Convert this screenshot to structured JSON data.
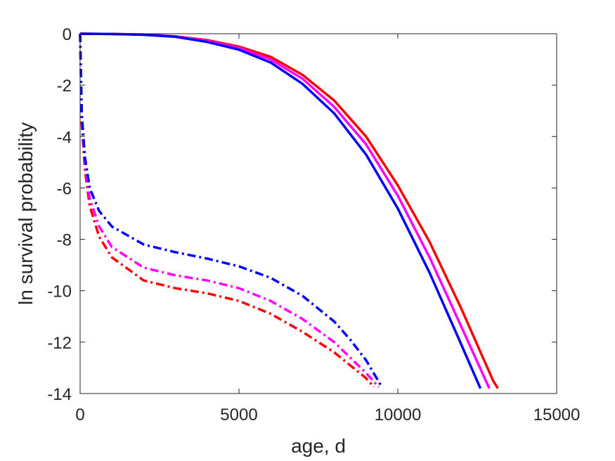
{
  "chart_data": {
    "type": "line",
    "title": "",
    "xlabel": "age, d",
    "ylabel": "ln survival probability",
    "xlim": [
      0,
      15000
    ],
    "ylim": [
      -14,
      0
    ],
    "xticks": [
      0,
      5000,
      10000,
      15000
    ],
    "yticks": [
      0,
      -2,
      -4,
      -6,
      -8,
      -10,
      -12,
      -14
    ],
    "xtick_labels": [
      "0",
      "5000",
      "10000",
      "15000"
    ],
    "ytick_labels": [
      "0",
      "-2",
      "-4",
      "-6",
      "-8",
      "-10",
      "-12",
      "-14"
    ],
    "grid": false,
    "legend": "none",
    "series": [
      {
        "color": "#ff0000",
        "style": "solid",
        "x": [
          0,
          1000,
          2000,
          3000,
          4000,
          5000,
          6000,
          7000,
          8000,
          9000,
          10000,
          11000,
          12000,
          13000,
          13150
        ],
        "y": [
          0,
          -0.01,
          -0.03,
          -0.1,
          -0.25,
          -0.5,
          -0.9,
          -1.6,
          -2.6,
          -4.0,
          -5.9,
          -8.1,
          -10.7,
          -13.5,
          -13.8
        ]
      },
      {
        "color": "#ff00ff",
        "style": "solid",
        "x": [
          0,
          1000,
          2000,
          3000,
          4000,
          5000,
          6000,
          7000,
          8000,
          9000,
          10000,
          11000,
          12000,
          12880
        ],
        "y": [
          0,
          -0.01,
          -0.03,
          -0.1,
          -0.28,
          -0.55,
          -1.0,
          -1.75,
          -2.85,
          -4.3,
          -6.3,
          -8.7,
          -11.4,
          -13.8
        ]
      },
      {
        "color": "#0000ff",
        "style": "solid",
        "x": [
          0,
          1000,
          2000,
          3000,
          4000,
          5000,
          6000,
          7000,
          8000,
          9000,
          10000,
          11000,
          12000,
          12600
        ],
        "y": [
          0,
          -0.01,
          -0.04,
          -0.12,
          -0.32,
          -0.62,
          -1.12,
          -1.95,
          -3.1,
          -4.7,
          -6.8,
          -9.3,
          -12.1,
          -13.8
        ]
      },
      {
        "color": "#ff0000",
        "style": "dashdot",
        "x": [
          0,
          50,
          150,
          300,
          600,
          1000,
          2000,
          3000,
          4000,
          5000,
          6000,
          7000,
          8000,
          8500,
          9000,
          9250
        ],
        "y": [
          0,
          -3.5,
          -5.3,
          -6.7,
          -7.9,
          -8.7,
          -9.6,
          -9.9,
          -10.1,
          -10.4,
          -10.9,
          -11.6,
          -12.4,
          -12.9,
          -13.4,
          -13.75
        ]
      },
      {
        "color": "#ff00ff",
        "style": "dashdot",
        "x": [
          0,
          50,
          150,
          300,
          600,
          1000,
          2000,
          3000,
          4000,
          5000,
          6000,
          7000,
          8000,
          8500,
          9000,
          9400
        ],
        "y": [
          0,
          -3.3,
          -5.0,
          -6.4,
          -7.5,
          -8.3,
          -9.1,
          -9.4,
          -9.6,
          -9.9,
          -10.4,
          -11.1,
          -12.0,
          -12.6,
          -13.2,
          -13.75
        ]
      },
      {
        "color": "#0000ff",
        "style": "dashdot",
        "x": [
          0,
          50,
          150,
          300,
          600,
          1000,
          2000,
          3000,
          4000,
          5000,
          6000,
          7000,
          8000,
          8500,
          9000,
          9500
        ],
        "y": [
          0,
          -3.1,
          -4.8,
          -6.0,
          -6.9,
          -7.5,
          -8.2,
          -8.5,
          -8.75,
          -9.05,
          -9.5,
          -10.2,
          -11.2,
          -11.9,
          -12.7,
          -13.75
        ]
      }
    ]
  }
}
